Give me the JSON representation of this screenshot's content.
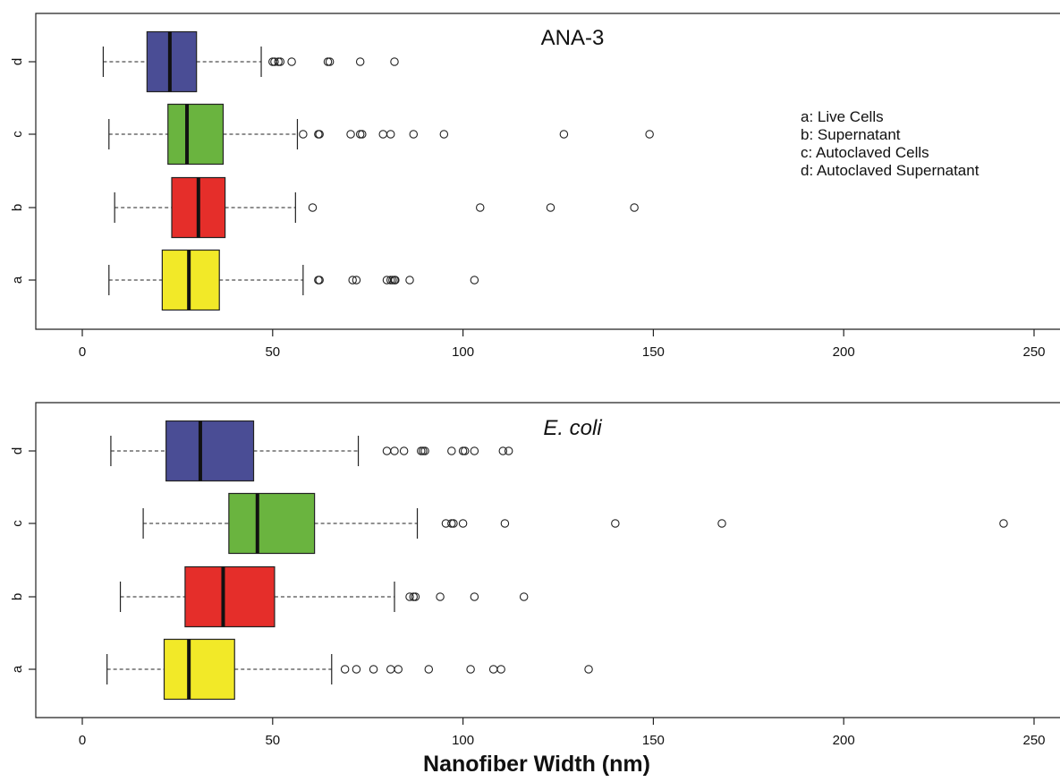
{
  "chart_data": [
    {
      "type": "boxplot",
      "title": "ANA-3",
      "title_italic": false,
      "orientation": "horizontal",
      "categories": [
        "a",
        "b",
        "c",
        "d"
      ],
      "legend": [
        "a: Live Cells",
        "b: Supernatant",
        "c: Autoclaved Cells",
        "d: Autoclaved Supernatant"
      ],
      "legend_placement": "top-right",
      "xlim": [
        0,
        250
      ],
      "xticks": [
        0,
        50,
        100,
        150,
        200,
        250
      ],
      "grid": false,
      "colors": {
        "a": "#f2e928",
        "b": "#e52e2a",
        "c": "#6ab43f",
        "d": "#4a4d95"
      },
      "boxes": [
        {
          "category": "a",
          "whisker_low": 7,
          "q1": 21,
          "median": 28,
          "q3": 36,
          "whisker_high": 58,
          "outliers": [
            62,
            62.3,
            71,
            72,
            80,
            81,
            81.5,
            82,
            82.2,
            86,
            103
          ]
        },
        {
          "category": "b",
          "whisker_low": 8.5,
          "q1": 23.5,
          "median": 30.5,
          "q3": 37.5,
          "whisker_high": 56,
          "outliers": [
            60.5,
            104.5,
            123,
            145
          ]
        },
        {
          "category": "c",
          "whisker_low": 7,
          "q1": 22.5,
          "median": 27.5,
          "q3": 37,
          "whisker_high": 56.5,
          "outliers": [
            58,
            62,
            62.3,
            70.5,
            73,
            73.5,
            79,
            81,
            87,
            95,
            126.5,
            149
          ]
        },
        {
          "category": "d",
          "whisker_low": 5.5,
          "q1": 17,
          "median": 23,
          "q3": 30,
          "whisker_high": 47,
          "outliers": [
            50,
            50.5,
            51.5,
            52,
            55,
            64.5,
            65,
            73,
            82
          ]
        }
      ]
    },
    {
      "type": "boxplot",
      "title": "E. coli",
      "title_italic": true,
      "orientation": "horizontal",
      "categories": [
        "a",
        "b",
        "c",
        "d"
      ],
      "xlim": [
        0,
        250
      ],
      "xticks": [
        0,
        50,
        100,
        150,
        200,
        250
      ],
      "xlabel": "Nanofiber Width (nm)",
      "grid": false,
      "colors": {
        "a": "#f2e928",
        "b": "#e52e2a",
        "c": "#6ab43f",
        "d": "#4a4d95"
      },
      "boxes": [
        {
          "category": "a",
          "whisker_low": 6.5,
          "q1": 21.5,
          "median": 28,
          "q3": 40,
          "whisker_high": 65.5,
          "outliers": [
            69,
            72,
            76.5,
            81,
            83,
            91,
            102,
            108,
            110,
            133
          ]
        },
        {
          "category": "b",
          "whisker_low": 10,
          "q1": 27,
          "median": 37,
          "q3": 50.5,
          "whisker_high": 82,
          "outliers": [
            86,
            87,
            87.5,
            94,
            103,
            116
          ]
        },
        {
          "category": "c",
          "whisker_low": 16,
          "q1": 38.5,
          "median": 46,
          "q3": 61,
          "whisker_high": 88,
          "outliers": [
            95.5,
            97,
            97.5,
            100,
            111,
            140,
            168,
            242
          ]
        },
        {
          "category": "d",
          "whisker_low": 7.5,
          "q1": 22,
          "median": 31,
          "q3": 45,
          "whisker_high": 72.5,
          "outliers": [
            80,
            82,
            84.5,
            89,
            89.5,
            90,
            97,
            100,
            100.5,
            103,
            110.5,
            112
          ]
        }
      ]
    }
  ]
}
